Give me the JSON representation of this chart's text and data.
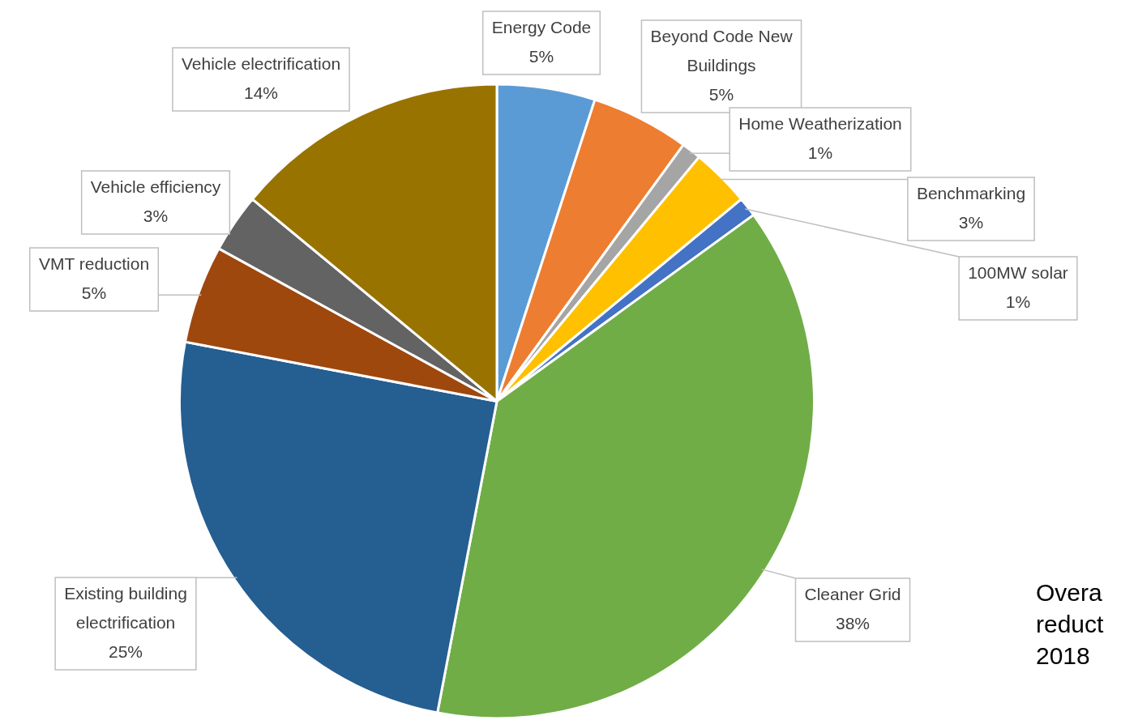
{
  "chart_data": {
    "type": "pie",
    "categories": [
      "Energy Code",
      "Beyond Code New Buildings",
      "Home Weatherization",
      "Benchmarking",
      "100MW solar",
      "Cleaner Grid",
      "Existing building electrification",
      "VMT reduction",
      "Vehicle efficiency",
      "Vehicle electrification"
    ],
    "values": [
      5,
      5,
      1,
      3,
      1,
      38,
      25,
      5,
      3,
      14
    ],
    "value_labels": [
      "5%",
      "5%",
      "1%",
      "3%",
      "1%",
      "38%",
      "25%",
      "5%",
      "3%",
      "14%"
    ],
    "colors": [
      "#5b9bd5",
      "#ed7d31",
      "#a5a5a5",
      "#ffc000",
      "#4472c4",
      "#70ad47",
      "#255e91",
      "#9e480e",
      "#636363",
      "#997300"
    ],
    "legend": false,
    "annotations": [
      "Overa",
      "reduct",
      "2018"
    ]
  }
}
